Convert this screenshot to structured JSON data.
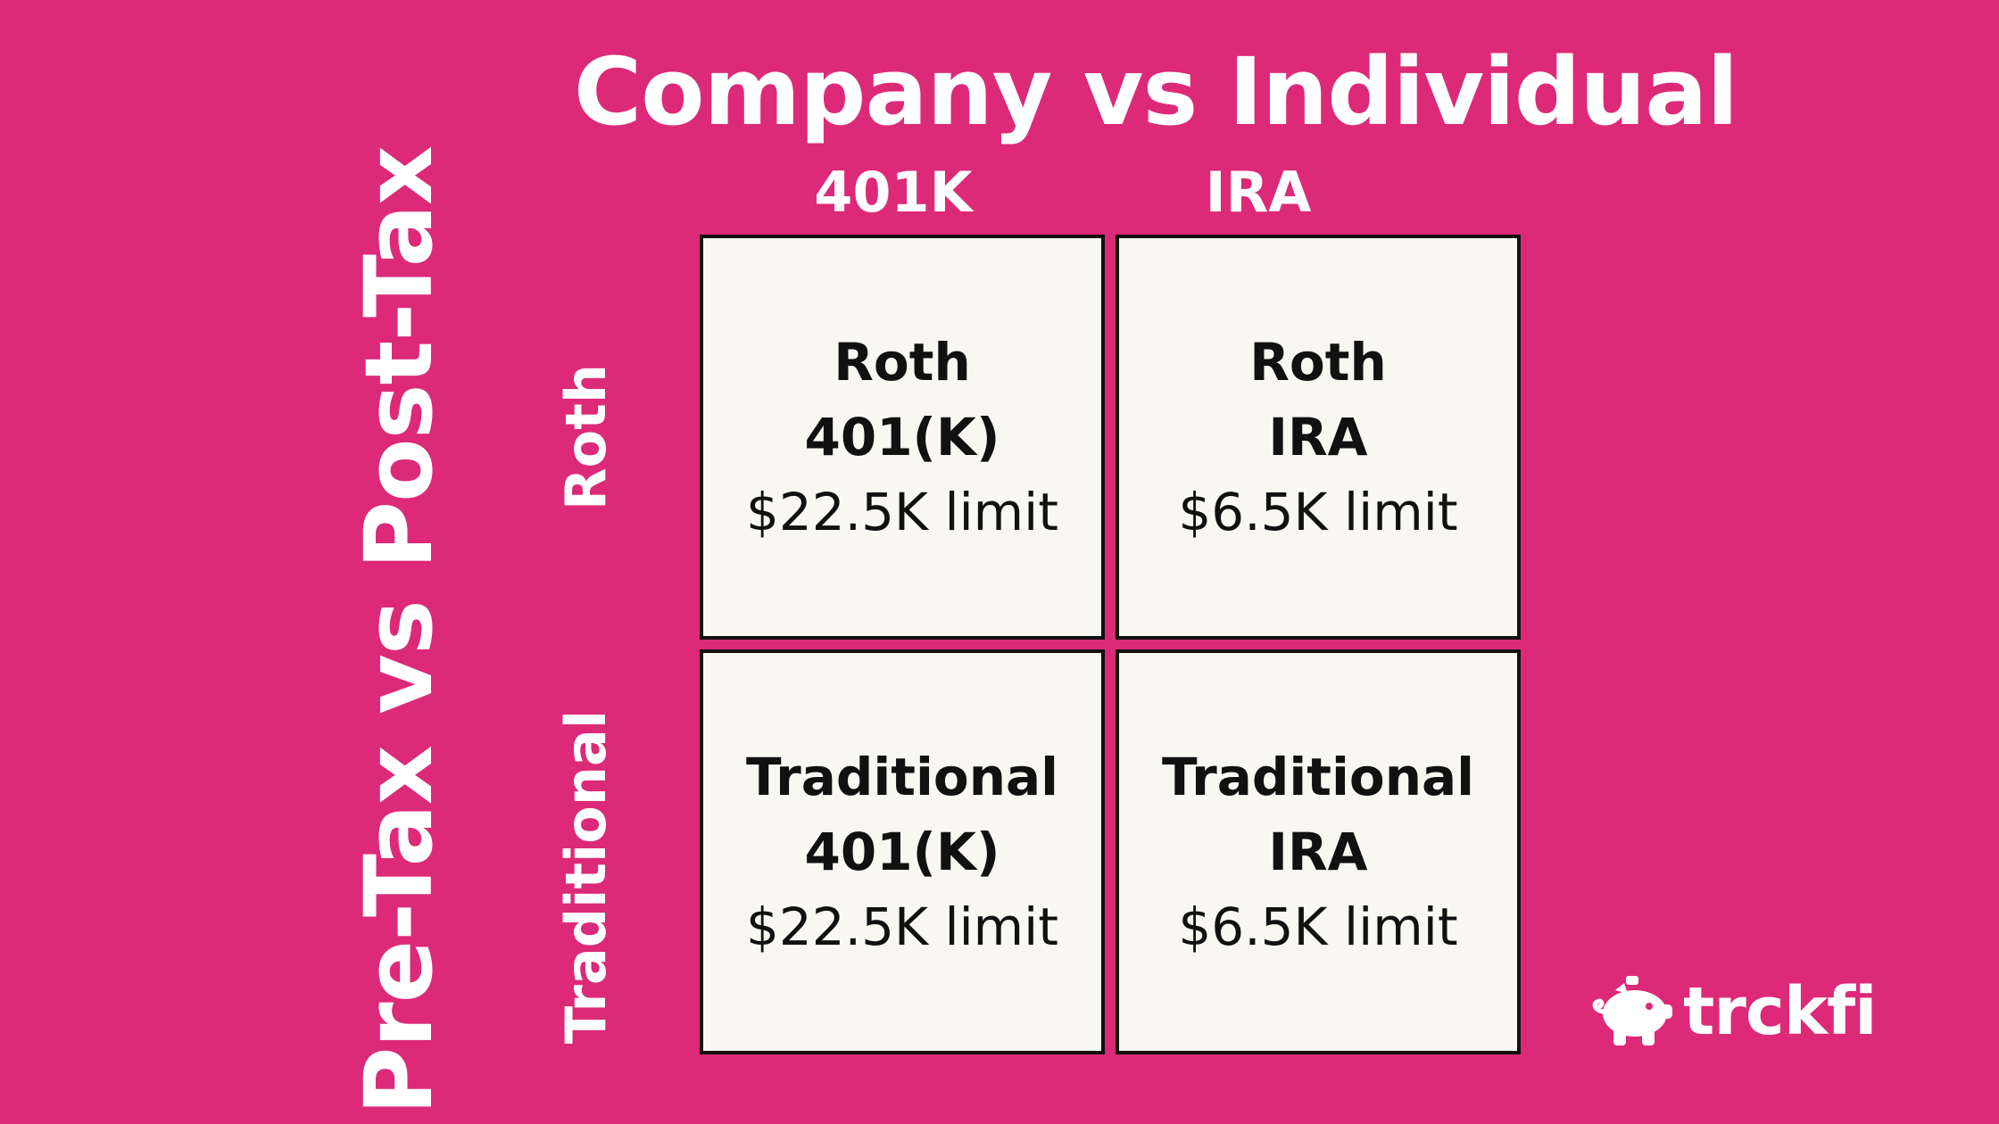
{
  "colors": {
    "background": "#DC2A78",
    "cell_fill": "#F8F7F2",
    "cell_border": "#111111",
    "text_on_bg": "#FFFFFF",
    "text_in_cell": "#111111"
  },
  "title": "Company vs Individual",
  "vertical_axis": "Pre-Tax vs Post-Tax",
  "columns": [
    "401K",
    "IRA"
  ],
  "rows": [
    "Roth",
    "Traditional"
  ],
  "cells": [
    [
      {
        "line1": "Roth",
        "line2": "401(K)",
        "limit": "$22.5K limit"
      },
      {
        "line1": "Roth",
        "line2": "IRA",
        "limit": "$6.5K limit"
      }
    ],
    [
      {
        "line1": "Traditional",
        "line2": "401(K)",
        "limit": "$22.5K limit"
      },
      {
        "line1": "Traditional",
        "line2": "IRA",
        "limit": "$6.5K limit"
      }
    ]
  ],
  "logo": {
    "text": "trckfi",
    "icon": "piggy-bank-icon"
  }
}
